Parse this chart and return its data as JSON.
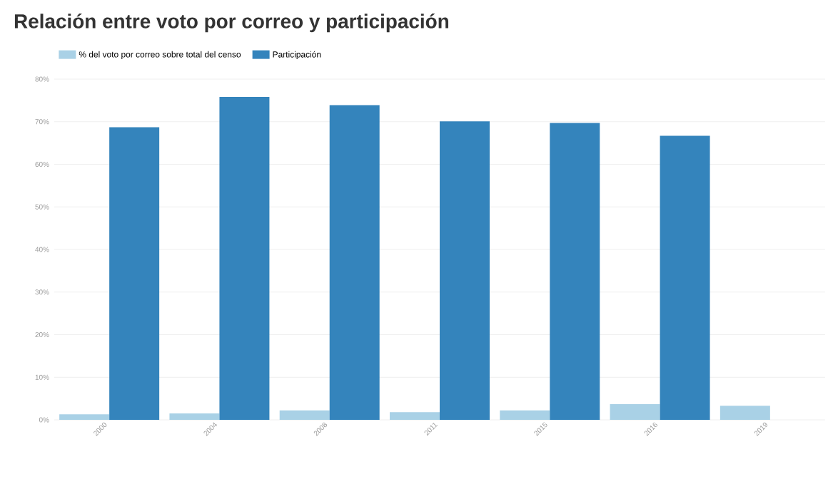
{
  "chart_data": {
    "type": "bar",
    "title": "Relación entre voto por correo y participación",
    "categories": [
      "2000",
      "2004",
      "2008",
      "2011",
      "2015",
      "2016",
      "2019"
    ],
    "series": [
      {
        "name": "% del voto por correo sobre total del censo",
        "color": "#a9d1e6",
        "values": [
          1.3,
          1.5,
          2.2,
          1.8,
          2.2,
          3.7,
          3.3
        ]
      },
      {
        "name": "Participación",
        "color": "#3484bc",
        "values": [
          68.7,
          75.8,
          73.9,
          70.1,
          69.7,
          66.7,
          null
        ]
      }
    ],
    "ylim": [
      0,
      80
    ],
    "yticks": [
      {
        "value": 0,
        "label": "0%"
      },
      {
        "value": 10,
        "label": "10%"
      },
      {
        "value": 20,
        "label": "20%"
      },
      {
        "value": 30,
        "label": "30%"
      },
      {
        "value": 40,
        "label": "40%"
      },
      {
        "value": 50,
        "label": "50%"
      },
      {
        "value": 60,
        "label": "60%"
      },
      {
        "value": 70,
        "label": "70%"
      },
      {
        "value": 80,
        "label": "80%"
      }
    ],
    "grid": "y",
    "legend": "top left"
  }
}
